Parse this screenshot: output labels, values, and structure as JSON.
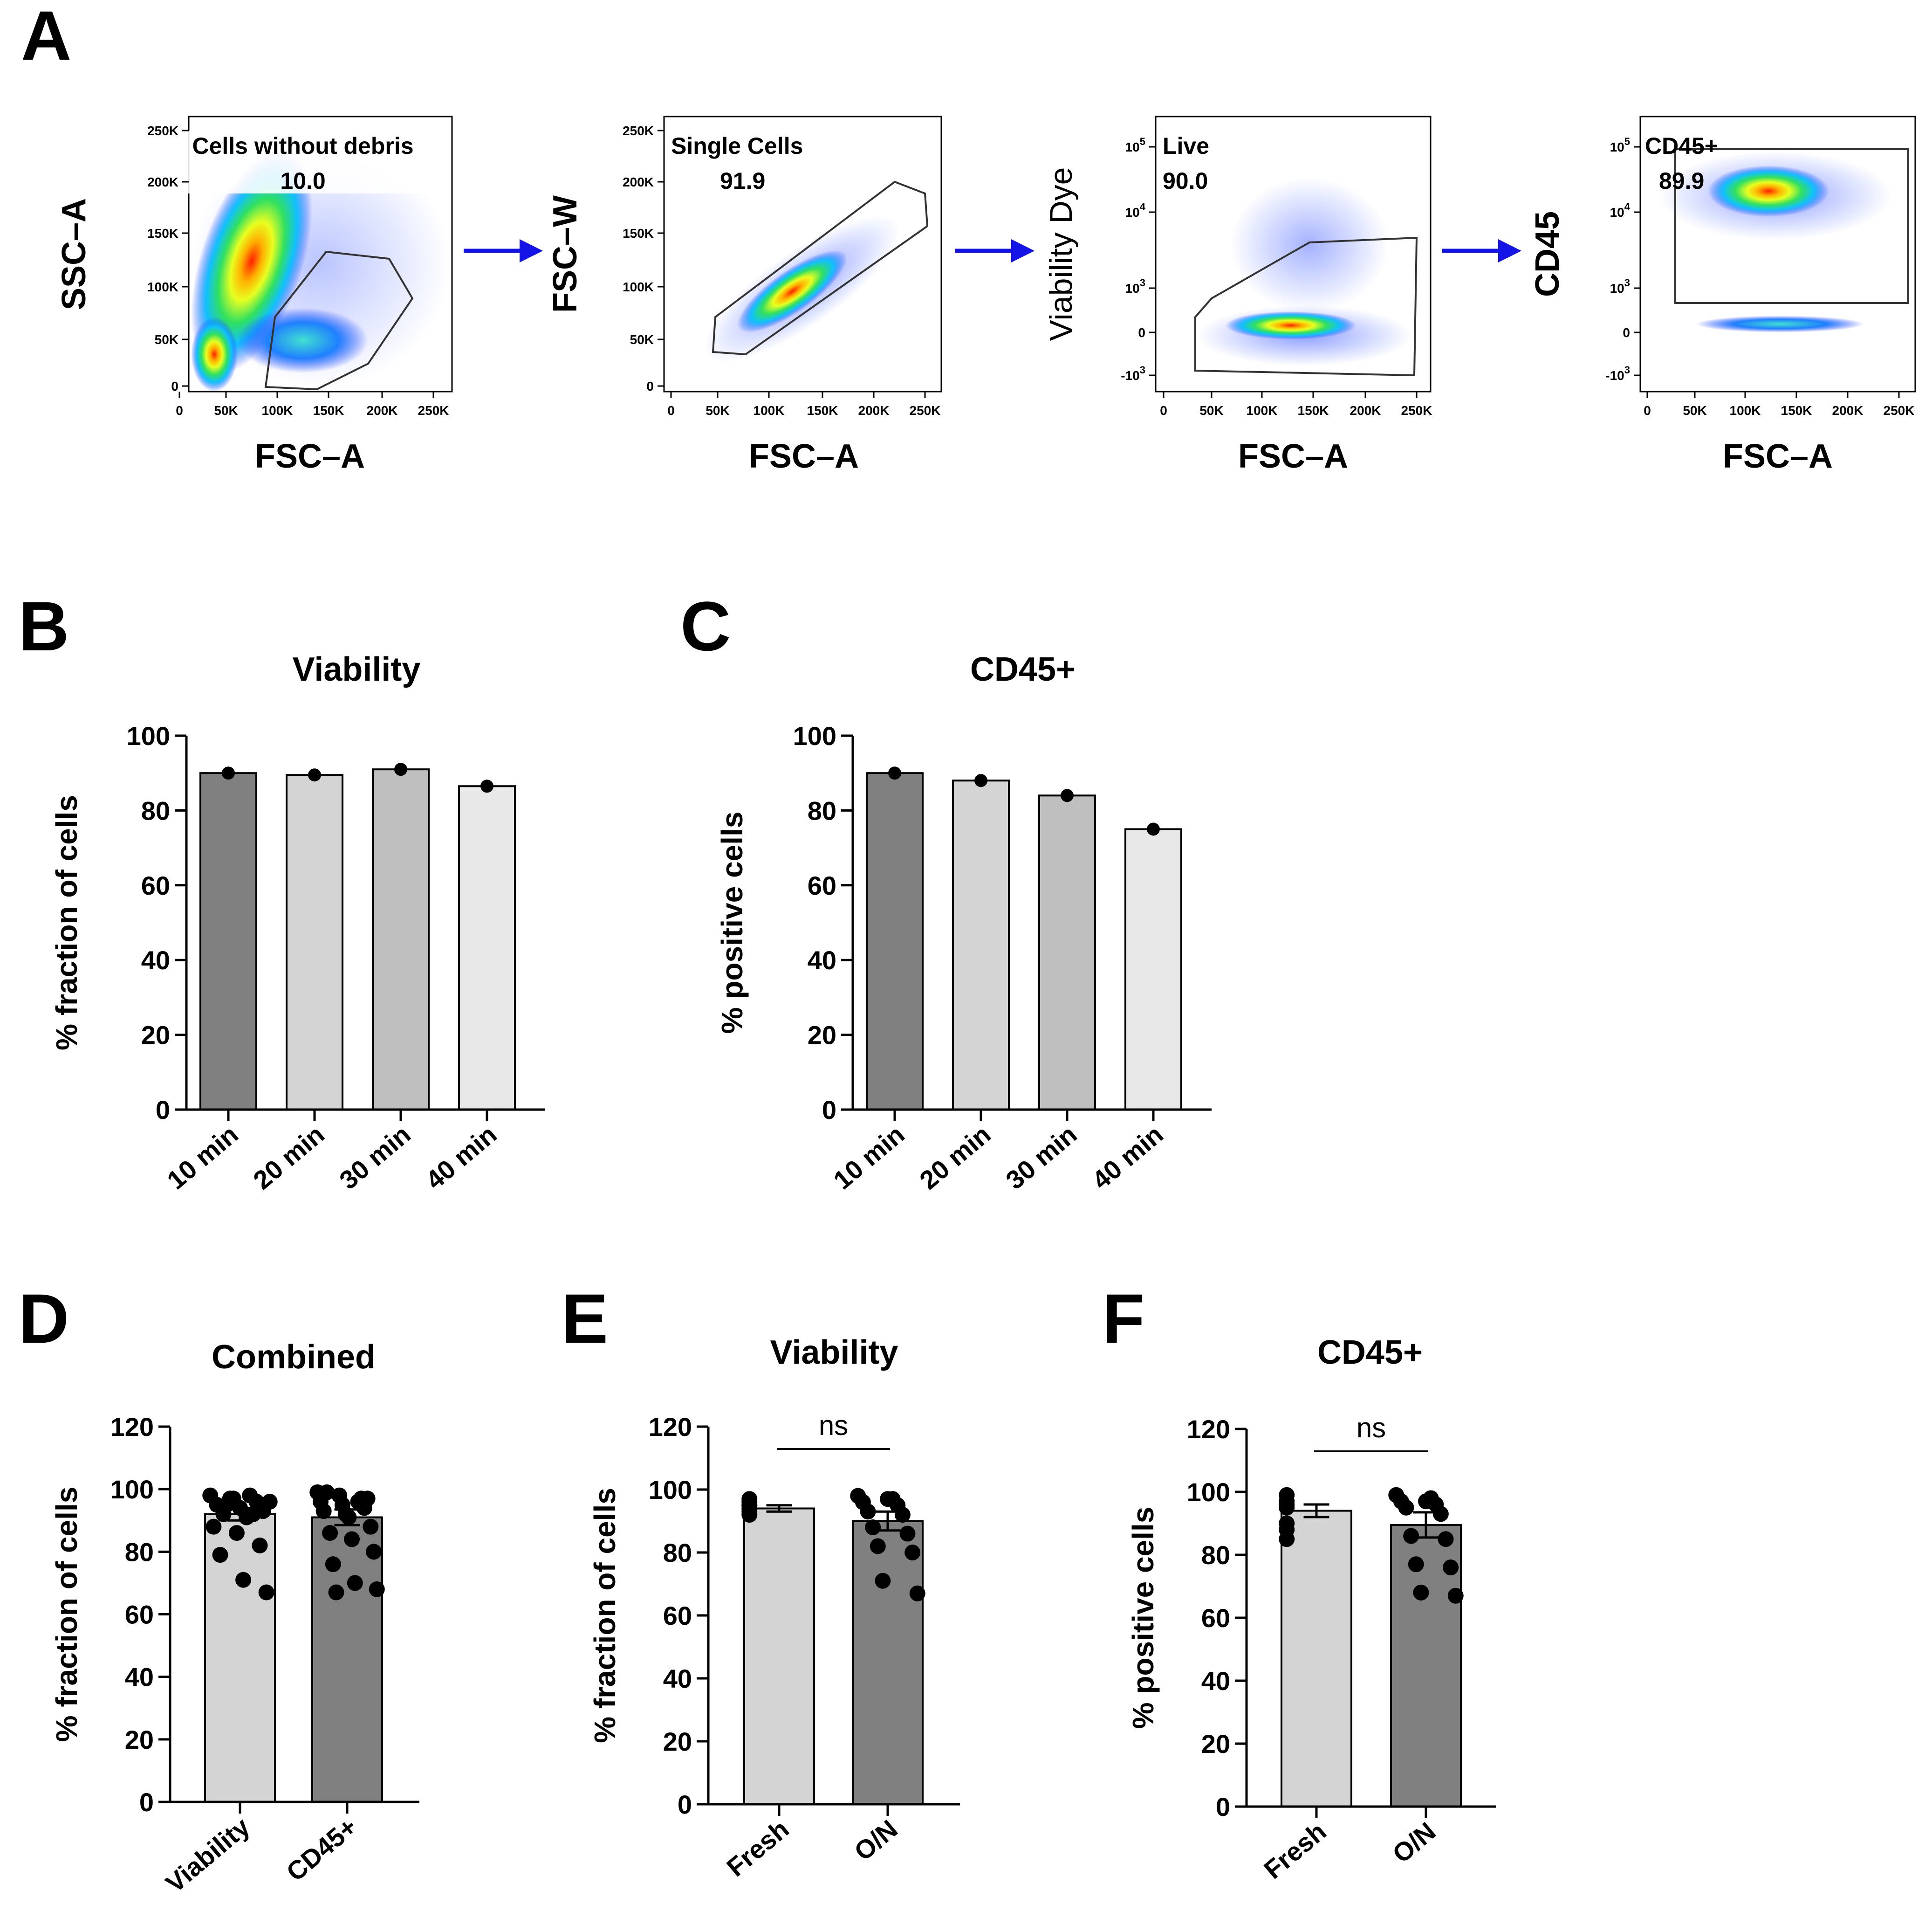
{
  "panel_labels": [
    "A",
    "B",
    "C",
    "D",
    "E",
    "F"
  ],
  "gating": {
    "plots": [
      {
        "ylabel": "SSC–A",
        "xlabel": "FSC–A",
        "gate_name": "Cells without debris",
        "gate_value": "10.0",
        "yticks": [
          "250K",
          "200K",
          "150K",
          "100K",
          "50K",
          "0"
        ],
        "xticks": [
          "0",
          "50K",
          "100K",
          "150K",
          "200K",
          "250K"
        ]
      },
      {
        "ylabel": "FSC–W",
        "xlabel": "FSC–A",
        "gate_name": "Single Cells",
        "gate_value": "91.9",
        "yticks": [
          "250K",
          "200K",
          "150K",
          "100K",
          "50K",
          "0"
        ],
        "xticks": [
          "0",
          "50K",
          "100K",
          "150K",
          "200K",
          "250K"
        ]
      },
      {
        "ylabel": "Viability Dye",
        "xlabel": "FSC–A",
        "gate_name": "Live",
        "gate_value": "90.0",
        "yticks": [
          "10^5",
          "10^4",
          "10^3",
          "0",
          "-10^3"
        ],
        "xticks": [
          "0",
          "50K",
          "100K",
          "150K",
          "200K",
          "250K"
        ]
      },
      {
        "ylabel": "CD45",
        "xlabel": "FSC–A",
        "gate_name": "CD45+",
        "gate_value": "89.9",
        "yticks": [
          "10^5",
          "10^4",
          "10^3",
          "0",
          "-10^3"
        ],
        "xticks": [
          "0",
          "50K",
          "100K",
          "150K",
          "200K",
          "250K"
        ]
      }
    ],
    "arrow_color": "#1414e6"
  },
  "colors": {
    "dark": "#808080",
    "mid": "#bfbfbf",
    "light": "#d4d4d4",
    "lighter": "#e8e8e8",
    "fresh": "#d4d4d4",
    "on": "#808080"
  },
  "chart_data": [
    {
      "panel": "B",
      "type": "bar",
      "title": "Viability",
      "xlabel": "",
      "ylabel": "% fraction of cells",
      "categories": [
        "10 min",
        "20 min",
        "30 min",
        "40 min"
      ],
      "values": [
        90,
        89.5,
        91,
        86.5
      ],
      "ylim": [
        0,
        100
      ],
      "yticks": [
        0,
        20,
        40,
        60,
        80,
        100
      ]
    },
    {
      "panel": "C",
      "type": "bar",
      "title": "CD45+",
      "xlabel": "",
      "ylabel": "% positive cells",
      "categories": [
        "10 min",
        "20 min",
        "30 min",
        "40 min"
      ],
      "values": [
        90,
        88,
        84,
        75
      ],
      "ylim": [
        0,
        100
      ],
      "yticks": [
        0,
        20,
        40,
        60,
        80,
        100
      ]
    },
    {
      "panel": "D",
      "type": "bar",
      "title": "Combined",
      "xlabel": "",
      "ylabel": "% fraction of cells",
      "categories": [
        "Viability",
        "CD45+"
      ],
      "values": [
        92,
        91
      ],
      "errors": [
        2,
        2.5
      ],
      "points": [
        [
          98,
          97,
          96,
          95,
          94,
          93,
          92,
          91,
          96,
          97,
          92,
          88,
          86,
          82,
          79,
          71,
          67,
          95,
          98
        ],
        [
          99,
          98,
          97,
          96,
          95,
          94,
          93,
          92,
          97,
          99,
          91,
          88,
          86,
          84,
          80,
          76,
          70,
          68,
          67,
          96
        ]
      ],
      "ylim": [
        0,
        120
      ],
      "yticks": [
        0,
        20,
        40,
        60,
        80,
        100,
        120
      ]
    },
    {
      "panel": "E",
      "type": "bar",
      "title": "Viability",
      "xlabel": "",
      "ylabel": "% fraction of cells",
      "categories": [
        "Fresh",
        "O/N"
      ],
      "values": [
        94,
        90
      ],
      "errors": [
        1,
        3
      ],
      "points": [
        [
          97,
          95,
          94,
          93,
          95,
          96,
          92
        ],
        [
          98,
          97,
          96,
          95,
          93,
          92,
          88,
          86,
          82,
          80,
          71,
          67,
          97
        ]
      ],
      "significance": "ns",
      "ylim": [
        0,
        120
      ],
      "yticks": [
        0,
        20,
        40,
        60,
        80,
        100,
        120
      ]
    },
    {
      "panel": "F",
      "type": "bar",
      "title": "CD45+",
      "xlabel": "",
      "ylabel": "% positive cells",
      "categories": [
        "Fresh",
        "O/N"
      ],
      "values": [
        94,
        89.5
      ],
      "errors": [
        2,
        4
      ],
      "points": [
        [
          99,
          97,
          96,
          95,
          90,
          88,
          85
        ],
        [
          99,
          98,
          97,
          96,
          95,
          93,
          86,
          85,
          77,
          76,
          68,
          67,
          97
        ]
      ],
      "significance": "ns",
      "ylim": [
        0,
        120
      ],
      "yticks": [
        0,
        20,
        40,
        60,
        80,
        100,
        120
      ]
    }
  ]
}
